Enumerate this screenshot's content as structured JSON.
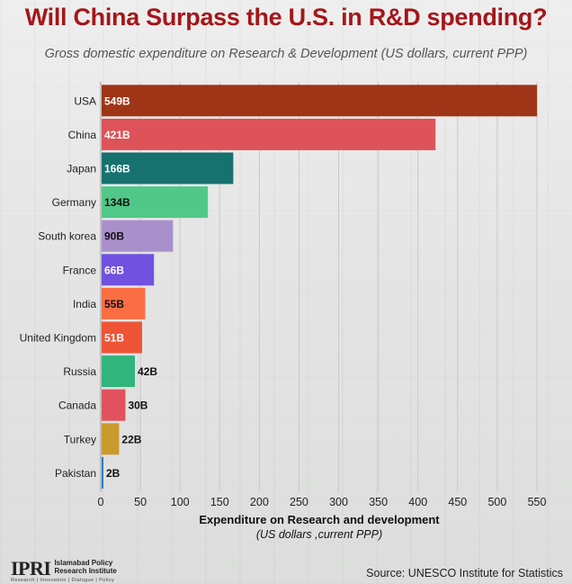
{
  "title": "Will China Surpass the U.S. in R&D spending?",
  "subtitle": "Gross domestic expenditure on Research & Development (US dollars, current PPP)",
  "chart_data": {
    "type": "bar",
    "orientation": "horizontal",
    "categories": [
      "USA",
      "China",
      "Japan",
      "Germany",
      "South korea",
      "France",
      "India",
      "United Kingdom",
      "Russia",
      "Canada",
      "Turkey",
      "Pakistan"
    ],
    "values": [
      549,
      421,
      166,
      134,
      90,
      66,
      55,
      51,
      42,
      30,
      22,
      2
    ],
    "value_labels": [
      "549B",
      "421B",
      "166B",
      "134B",
      "90B",
      "66B",
      "55B",
      "51B",
      "42B",
      "30B",
      "22B",
      "2B"
    ],
    "colors": [
      "#9e3516",
      "#de5259",
      "#17716e",
      "#52c888",
      "#a990cb",
      "#7051e0",
      "#fb6d43",
      "#ef5436",
      "#31b57d",
      "#e0535e",
      "#cb9a2c",
      "#2d7fc3"
    ],
    "label_colors": [
      "#ffffff",
      "#ffffff",
      "#ffffff",
      "#111111",
      "#111111",
      "#ffffff",
      "#111111",
      "#ffffff",
      "#ffffff",
      "#ffffff",
      "#111111",
      "#111111"
    ],
    "xlim": [
      0,
      550
    ],
    "x_ticks": [
      0,
      50,
      100,
      150,
      200,
      250,
      300,
      350,
      400,
      450,
      500,
      550
    ],
    "xlabel": "Expenditure on Research and development",
    "xlabel_sub": "(US dollars ,current PPP)",
    "grid": true
  },
  "footer": {
    "logo_mark": "IPRI",
    "logo_line1": "Islamabad Policy",
    "logo_line2": "Research Institute",
    "logo_tagline": "Research | Innovation | Dialogue | Policy",
    "source": "Source: UNESCO Institute for Statistics"
  }
}
